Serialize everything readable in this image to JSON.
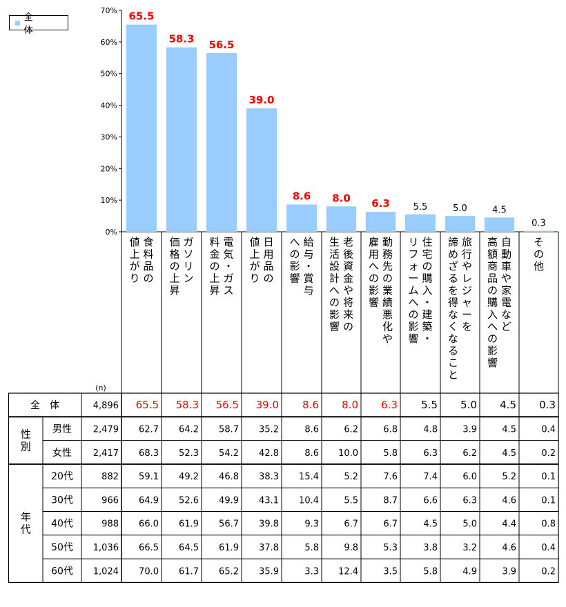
{
  "chart_data": {
    "type": "bar",
    "legend": {
      "label": "全　体",
      "position": "top-left"
    },
    "ylim": [
      0,
      70
    ],
    "yticks": [
      "0%",
      "10%",
      "20%",
      "30%",
      "40%",
      "50%",
      "60%",
      "70%"
    ],
    "categories": [
      [
        "食料品の",
        "値上がり"
      ],
      [
        "ガソリン",
        "価格の上昇"
      ],
      [
        "電気・ガス",
        "料金の上昇"
      ],
      [
        "日用品の",
        "値上がり"
      ],
      [
        "給与・賞与",
        "への影響"
      ],
      [
        "老後資金や将来の",
        "生活設計への影響"
      ],
      [
        "勤務先の業績悪化や",
        "雇用への影響"
      ],
      [
        "住宅の購入・建築・",
        "リフォームへの影響"
      ],
      [
        "旅行やレジャーを",
        "諦めざるを得なくなること"
      ],
      [
        "自動車や家電など",
        "高額商品の購入への影響"
      ],
      [
        "その他"
      ]
    ],
    "series": [
      {
        "name": "全　体",
        "values": [
          65.5,
          58.3,
          56.5,
          39.0,
          8.6,
          8.0,
          6.3,
          5.5,
          5.0,
          4.5,
          0.3
        ],
        "value_labels": [
          "65.5",
          "58.3",
          "56.5",
          "39.0",
          "8.6",
          "8.0",
          "6.3",
          "5.5",
          "5.0",
          "4.5",
          "0.3"
        ]
      }
    ],
    "highlight_count": 7
  },
  "table": {
    "n_label": "(n)",
    "groups": [
      {
        "label": "",
        "rows": [
          {
            "label": "全　体",
            "n": "4,896",
            "values": [
              "65.5",
              "58.3",
              "56.5",
              "39.0",
              "8.6",
              "8.0",
              "6.3",
              "5.5",
              "5.0",
              "4.5",
              "0.3"
            ],
            "highlight": true
          }
        ]
      },
      {
        "label": "性別",
        "rows": [
          {
            "label": "男性",
            "n": "2,479",
            "values": [
              "62.7",
              "64.2",
              "58.7",
              "35.2",
              "8.6",
              "6.2",
              "6.8",
              "4.8",
              "3.9",
              "4.5",
              "0.4"
            ]
          },
          {
            "label": "女性",
            "n": "2,417",
            "values": [
              "68.3",
              "52.3",
              "54.2",
              "42.8",
              "8.6",
              "10.0",
              "5.8",
              "6.3",
              "6.2",
              "4.5",
              "0.2"
            ]
          }
        ]
      },
      {
        "label": "年代",
        "rows": [
          {
            "label": "20代",
            "n": "882",
            "values": [
              "59.1",
              "49.2",
              "46.8",
              "38.3",
              "15.4",
              "5.2",
              "7.6",
              "7.4",
              "6.0",
              "5.2",
              "0.1"
            ]
          },
          {
            "label": "30代",
            "n": "966",
            "values": [
              "64.9",
              "52.6",
              "49.9",
              "43.1",
              "10.4",
              "5.5",
              "8.7",
              "6.6",
              "6.3",
              "4.6",
              "0.1"
            ]
          },
          {
            "label": "40代",
            "n": "988",
            "values": [
              "66.0",
              "61.9",
              "56.7",
              "39.8",
              "9.3",
              "6.7",
              "6.7",
              "4.5",
              "5.0",
              "4.4",
              "0.8"
            ]
          },
          {
            "label": "50代",
            "n": "1,036",
            "values": [
              "66.5",
              "64.5",
              "61.9",
              "37.8",
              "5.8",
              "9.8",
              "5.3",
              "3.8",
              "3.2",
              "4.6",
              "0.4"
            ]
          },
          {
            "label": "60代",
            "n": "1,024",
            "values": [
              "70.0",
              "61.7",
              "65.2",
              "35.9",
              "3.3",
              "12.4",
              "3.5",
              "5.8",
              "4.9",
              "3.9",
              "0.2"
            ]
          }
        ]
      }
    ]
  },
  "colors": {
    "bar": "#99ccff",
    "highlight": "#ee0000",
    "text": "#000000",
    "grid": "#000000"
  }
}
